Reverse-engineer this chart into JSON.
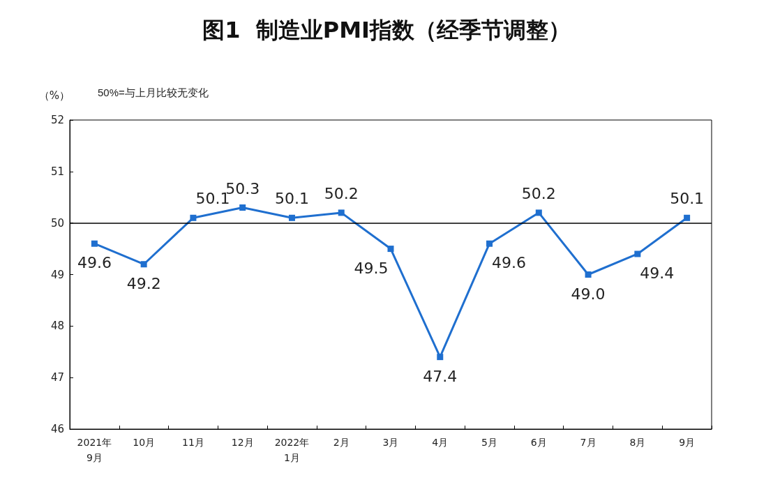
{
  "chart_data": {
    "type": "line",
    "title": "图1  制造业PMI指数（经季节调整）",
    "ylabel": "（%）",
    "annotations": [
      "50%=与上月比较无变化"
    ],
    "categories": [
      "2021年\n9月",
      "10月",
      "11月",
      "12月",
      "2022年\n1月",
      "2月",
      "3月",
      "4月",
      "5月",
      "6月",
      "7月",
      "8月",
      "9月"
    ],
    "series": [
      {
        "color": "#1f6fcf",
        "values": [
          49.6,
          49.2,
          50.1,
          50.3,
          50.1,
          50.2,
          49.5,
          47.4,
          49.6,
          50.2,
          49.0,
          49.4,
          50.1
        ],
        "value_labels": [
          "49.6",
          "49.2",
          "50.1",
          "50.3",
          "50.1",
          "50.2",
          "49.5",
          "47.4",
          "49.6",
          "50.2",
          "49.0",
          "49.4",
          "50.1"
        ]
      }
    ],
    "ylim": [
      46,
      52
    ],
    "yticks": [
      46,
      47,
      48,
      49,
      50,
      51,
      52
    ],
    "marker": "square",
    "line_style": "solid",
    "grid": false,
    "ref_lines": [
      {
        "axis": "y",
        "value": 50,
        "color": "#000000"
      }
    ]
  }
}
